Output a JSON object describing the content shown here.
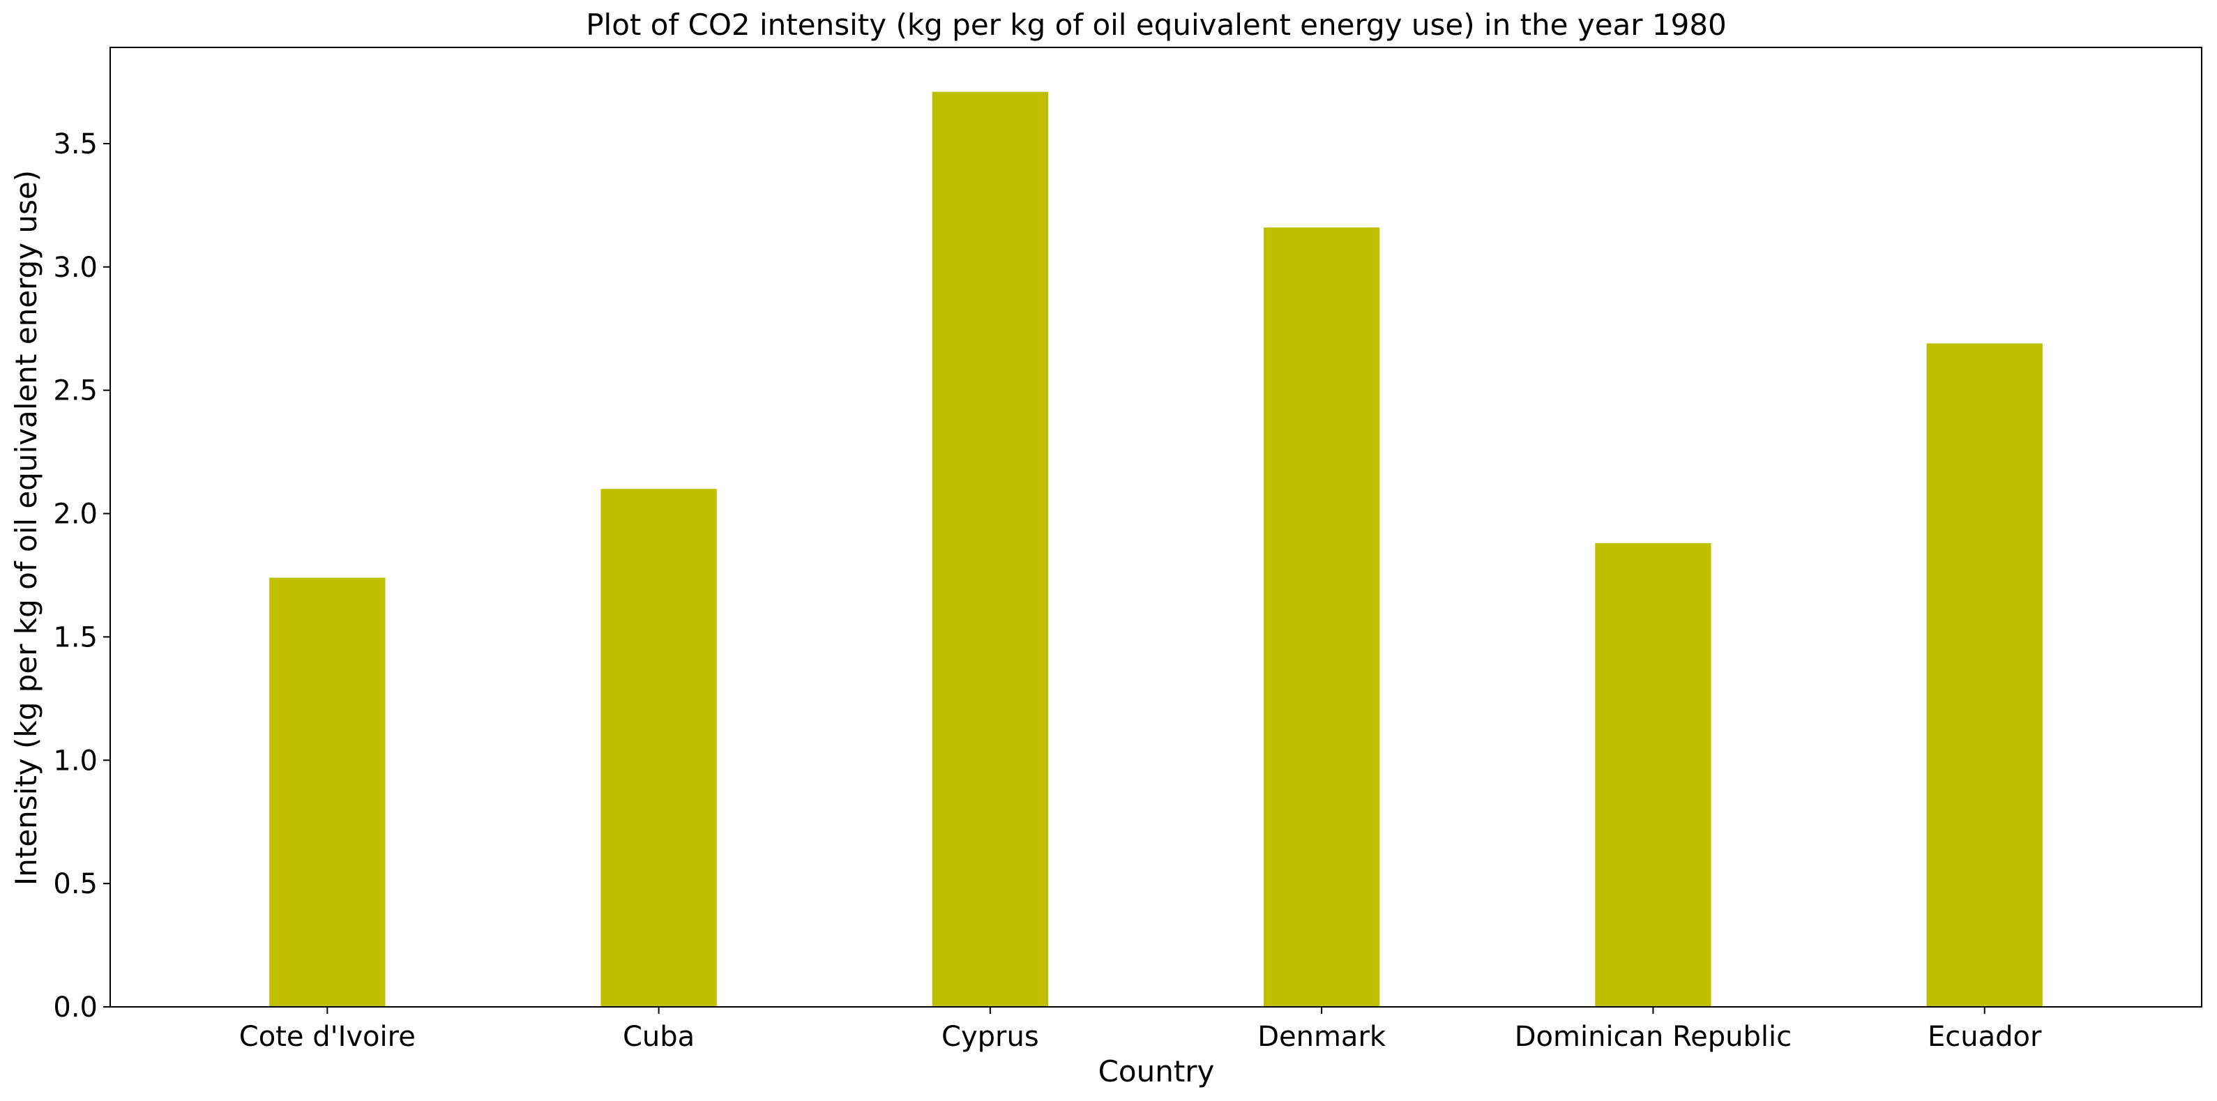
{
  "chart_data": {
    "type": "bar",
    "title": "Plot of CO2 intensity (kg per kg of oil equivalent energy use) in the year 1980",
    "xlabel": "Country",
    "ylabel": "Intensity (kg per kg of oil equivalent energy use)",
    "categories": [
      "Cote d'Ivoire",
      "Cuba",
      "Cyprus",
      "Denmark",
      "Dominican Republic",
      "Ecuador"
    ],
    "values": [
      1.74,
      2.1,
      3.71,
      3.16,
      1.88,
      2.69
    ],
    "ylim": [
      0,
      3.89
    ],
    "yticks": [
      0.0,
      0.5,
      1.0,
      1.5,
      2.0,
      2.5,
      3.0,
      3.5
    ],
    "ytick_labels": [
      "0.0",
      "0.5",
      "1.0",
      "1.5",
      "2.0",
      "2.5",
      "3.0",
      "3.5"
    ],
    "bar_color": "#bfbf00",
    "grid": false,
    "legend": "none"
  }
}
